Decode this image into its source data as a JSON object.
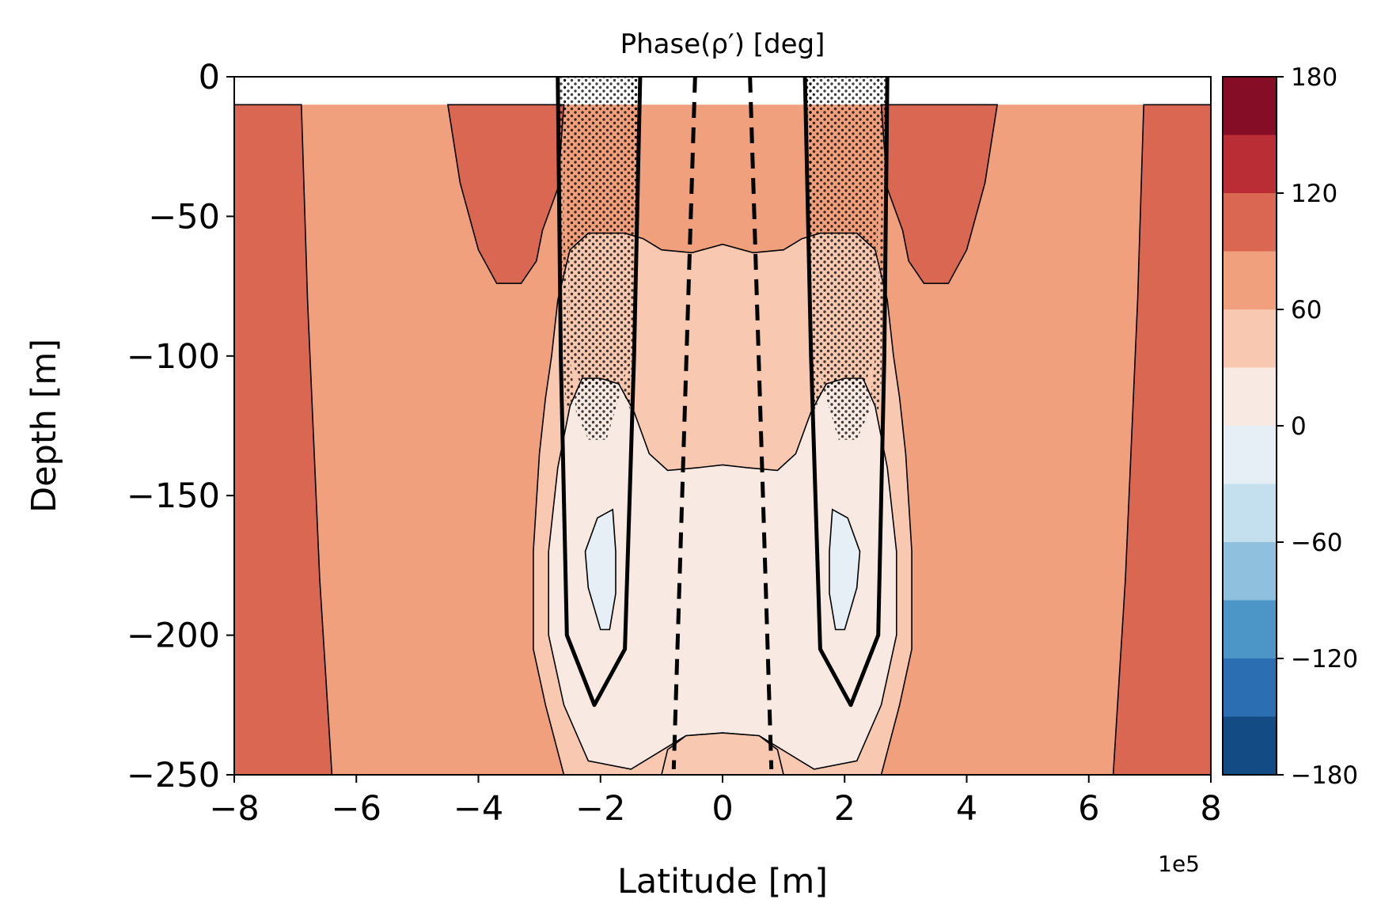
{
  "chart_data": {
    "type": "contourf",
    "title": "Phase(ρ′) [deg]",
    "xlabel": "Latitude [m]",
    "ylabel": "Depth [m]",
    "x_offset_label": "1e5",
    "xlim": [
      -8,
      8
    ],
    "ylim": [
      -250,
      0
    ],
    "xticks": [
      -8,
      -6,
      -4,
      -2,
      0,
      2,
      4,
      6,
      8
    ],
    "yticks": [
      0,
      -50,
      -100,
      -150,
      -200,
      -250
    ],
    "data_top": -10,
    "colorbar": {
      "range": [
        -180,
        180
      ],
      "levels": [
        -180,
        -150,
        -120,
        -90,
        -60,
        -30,
        0,
        30,
        60,
        90,
        120,
        150,
        180
      ],
      "colors": [
        "#134b85",
        "#2b6fb2",
        "#4b96c6",
        "#8fc1de",
        "#c4dfed",
        "#e6eff5",
        "#f8e9e2",
        "#f8c8b0",
        "#f0a07c",
        "#d96752",
        "#ba2d35",
        "#850d26"
      ],
      "tick_labels": [
        "180",
        "120",
        "60",
        "0",
        "−60",
        "−120",
        "−180"
      ]
    },
    "regions": [
      {
        "name": "120-150",
        "outer": [
          [
            -8,
            -10
          ],
          [
            -6.9,
            -10
          ],
          [
            -6.8,
            -80
          ],
          [
            -6.6,
            -180
          ],
          [
            -6.4,
            -250
          ],
          [
            -8,
            -250
          ]
        ]
      },
      {
        "name": "120-150",
        "outer": [
          [
            8,
            -10
          ],
          [
            6.9,
            -10
          ],
          [
            6.8,
            -80
          ],
          [
            6.6,
            -180
          ],
          [
            6.4,
            -250
          ],
          [
            8,
            -250
          ]
        ]
      },
      {
        "name": "120-150",
        "outer": [
          [
            -4.5,
            -10
          ],
          [
            -2.6,
            -10
          ],
          [
            -2.7,
            -40
          ],
          [
            -2.95,
            -55
          ],
          [
            -3.05,
            -66
          ],
          [
            -3.3,
            -74
          ],
          [
            -3.7,
            -74
          ],
          [
            -4.0,
            -62
          ],
          [
            -4.3,
            -38
          ]
        ]
      },
      {
        "name": "120-150",
        "outer": [
          [
            4.5,
            -10
          ],
          [
            2.6,
            -10
          ],
          [
            2.7,
            -40
          ],
          [
            2.95,
            -55
          ],
          [
            3.05,
            -66
          ],
          [
            3.3,
            -74
          ],
          [
            3.7,
            -74
          ],
          [
            4.0,
            -62
          ],
          [
            4.3,
            -38
          ]
        ]
      },
      {
        "name": "30-60",
        "outer": [
          [
            -2.5,
            -62
          ],
          [
            -2.2,
            -56
          ],
          [
            -1.9,
            -56
          ],
          [
            -1.6,
            -56
          ],
          [
            -1.3,
            -58
          ],
          [
            -1.0,
            -62
          ],
          [
            -0.5,
            -63
          ],
          [
            0,
            -60
          ],
          [
            0.5,
            -63
          ],
          [
            1.0,
            -62
          ],
          [
            1.3,
            -58
          ],
          [
            1.6,
            -56
          ],
          [
            1.9,
            -56
          ],
          [
            2.2,
            -56
          ],
          [
            2.5,
            -62
          ],
          [
            2.7,
            -80
          ],
          [
            2.8,
            -100
          ],
          [
            2.9,
            -115
          ],
          [
            3.0,
            -135
          ],
          [
            3.1,
            -170
          ],
          [
            3.1,
            -205
          ],
          [
            2.9,
            -225
          ],
          [
            2.6,
            -250
          ],
          [
            -2.6,
            -250
          ],
          [
            -2.9,
            -225
          ],
          [
            -3.1,
            -205
          ],
          [
            -3.1,
            -170
          ],
          [
            -3.0,
            -135
          ],
          [
            -2.9,
            -115
          ],
          [
            -2.8,
            -100
          ],
          [
            -2.7,
            -80
          ]
        ]
      },
      {
        "name": "0-30",
        "outer": [
          [
            -2.3,
            -108
          ],
          [
            -2.0,
            -108
          ],
          [
            -1.7,
            -110
          ],
          [
            -1.45,
            -120
          ],
          [
            -1.2,
            -135
          ],
          [
            -0.9,
            -141
          ],
          [
            -0.4,
            -140
          ],
          [
            0,
            -139
          ],
          [
            0.4,
            -140
          ],
          [
            0.9,
            -141
          ],
          [
            1.2,
            -135
          ],
          [
            1.45,
            -120
          ],
          [
            1.7,
            -110
          ],
          [
            2.0,
            -108
          ],
          [
            2.3,
            -108
          ],
          [
            2.5,
            -118
          ],
          [
            2.7,
            -140
          ],
          [
            2.85,
            -170
          ],
          [
            2.85,
            -200
          ],
          [
            2.6,
            -225
          ],
          [
            2.2,
            -245
          ],
          [
            1.5,
            -248
          ],
          [
            0.9,
            -240
          ],
          [
            0.6,
            -236
          ],
          [
            0,
            -235
          ],
          [
            -0.6,
            -236
          ],
          [
            -0.9,
            -240
          ],
          [
            -1.5,
            -248
          ],
          [
            -2.2,
            -245
          ],
          [
            -2.6,
            -225
          ],
          [
            -2.85,
            -200
          ],
          [
            -2.85,
            -170
          ],
          [
            -2.7,
            -140
          ],
          [
            -2.5,
            -118
          ]
        ]
      },
      {
        "name": "30-60",
        "outer": [
          [
            -0.9,
            -241
          ],
          [
            -0.6,
            -236
          ],
          [
            0,
            -235
          ],
          [
            0.6,
            -236
          ],
          [
            0.9,
            -241
          ],
          [
            1.0,
            -250
          ],
          [
            -1.0,
            -250
          ]
        ]
      },
      {
        "name": "-30-0",
        "outer": [
          [
            -2.25,
            -170
          ],
          [
            -2.05,
            -158
          ],
          [
            -1.8,
            -155
          ],
          [
            -1.75,
            -170
          ],
          [
            -1.75,
            -185
          ],
          [
            -1.85,
            -198
          ],
          [
            -2.0,
            -198
          ],
          [
            -2.2,
            -183
          ]
        ]
      },
      {
        "name": "-30-0",
        "outer": [
          [
            2.25,
            -170
          ],
          [
            2.05,
            -158
          ],
          [
            1.8,
            -155
          ],
          [
            1.75,
            -170
          ],
          [
            1.75,
            -185
          ],
          [
            1.85,
            -198
          ],
          [
            2.0,
            -198
          ],
          [
            2.2,
            -183
          ]
        ]
      }
    ],
    "stippled": [
      [
        [
          -2.7,
          0
        ],
        [
          -2.55,
          0
        ],
        [
          -2.6,
          -50
        ],
        [
          -2.5,
          -100
        ],
        [
          -2.4,
          -120
        ],
        [
          -2.2,
          -130
        ],
        [
          -1.9,
          -130
        ],
        [
          -1.7,
          -115
        ],
        [
          -1.45,
          -100
        ],
        [
          -1.45,
          -50
        ],
        [
          -1.5,
          0
        ],
        [
          -1.35,
          0
        ],
        [
          -1.45,
          -70
        ],
        [
          -1.5,
          -120
        ],
        [
          -1.65,
          -112
        ],
        [
          -1.9,
          -107
        ],
        [
          -2.3,
          -107
        ],
        [
          -2.55,
          -120
        ],
        [
          -2.6,
          -110
        ]
      ],
      [
        [
          2.7,
          0
        ],
        [
          2.55,
          0
        ],
        [
          2.6,
          -50
        ],
        [
          2.5,
          -100
        ],
        [
          2.4,
          -120
        ],
        [
          2.2,
          -130
        ],
        [
          1.9,
          -130
        ],
        [
          1.7,
          -115
        ],
        [
          1.45,
          -100
        ],
        [
          1.45,
          -50
        ],
        [
          1.5,
          0
        ],
        [
          1.35,
          0
        ],
        [
          1.45,
          -70
        ],
        [
          1.5,
          -120
        ],
        [
          1.65,
          -112
        ],
        [
          1.9,
          -107
        ],
        [
          2.3,
          -107
        ],
        [
          2.55,
          -120
        ],
        [
          2.6,
          -110
        ]
      ],
      [
        [
          -2.6,
          0
        ],
        [
          -1.35,
          0
        ],
        [
          -1.4,
          -50
        ],
        [
          -1.45,
          -100
        ],
        [
          -1.7,
          -112
        ],
        [
          -2.0,
          -110
        ],
        [
          -2.3,
          -112
        ],
        [
          -2.5,
          -100
        ],
        [
          -2.55,
          -50
        ]
      ],
      [
        [
          2.6,
          0
        ],
        [
          1.35,
          0
        ],
        [
          1.4,
          -50
        ],
        [
          1.45,
          -100
        ],
        [
          1.7,
          -112
        ],
        [
          2.0,
          -110
        ],
        [
          2.3,
          -112
        ],
        [
          2.5,
          -100
        ],
        [
          2.55,
          -50
        ]
      ]
    ],
    "thick_contours": [
      [
        [
          -2.7,
          0
        ],
        [
          -2.65,
          -100
        ],
        [
          -2.55,
          -200
        ],
        [
          -2.1,
          -225
        ],
        [
          -1.6,
          -205
        ],
        [
          -1.45,
          -100
        ],
        [
          -1.35,
          0
        ]
      ],
      [
        [
          2.7,
          0
        ],
        [
          2.65,
          -100
        ],
        [
          2.55,
          -200
        ],
        [
          2.1,
          -225
        ],
        [
          1.6,
          -205
        ],
        [
          1.45,
          -100
        ],
        [
          1.35,
          0
        ]
      ]
    ],
    "dashed_contours": [
      [
        [
          -0.45,
          0
        ],
        [
          -0.8,
          -248
        ]
      ],
      [
        [
          0.45,
          0
        ],
        [
          0.8,
          -248
        ]
      ]
    ]
  }
}
